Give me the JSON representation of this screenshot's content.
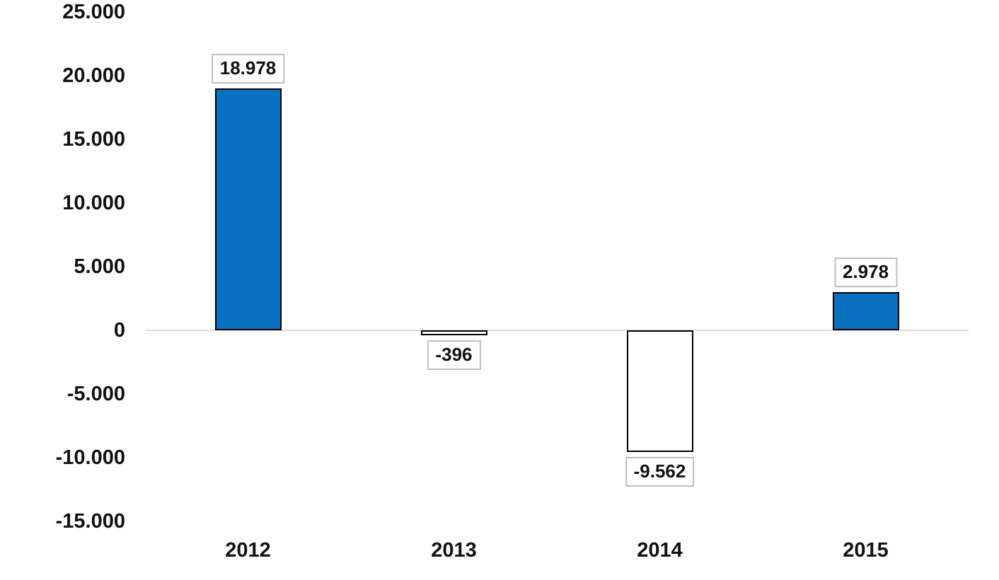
{
  "chart_data": {
    "type": "bar",
    "title": "",
    "xlabel": "",
    "ylabel": "",
    "categories": [
      "2012",
      "2013",
      "2014",
      "2015"
    ],
    "values": [
      18978,
      -396,
      -9562,
      2978
    ],
    "points": [
      {
        "category": "2012",
        "value": 18978,
        "label": "18.978",
        "fill": "#0a70c0"
      },
      {
        "category": "2013",
        "value": -396,
        "label": "-396",
        "fill": "#ffffff"
      },
      {
        "category": "2014",
        "value": -9562,
        "label": "-9.562",
        "fill": "#ffffff"
      },
      {
        "category": "2015",
        "value": 2978,
        "label": "2.978",
        "fill": "#0a70c0"
      }
    ],
    "ylim": [
      -15000,
      25000
    ],
    "ytick_interval": 5000,
    "yticks": [
      {
        "value": 25000,
        "label": "25.000"
      },
      {
        "value": 20000,
        "label": "20.000"
      },
      {
        "value": 15000,
        "label": "15.000"
      },
      {
        "value": 10000,
        "label": "10.000"
      },
      {
        "value": 5000,
        "label": "5.000"
      },
      {
        "value": 0,
        "label": "0"
      },
      {
        "value": -5000,
        "label": "-5.000"
      },
      {
        "value": -10000,
        "label": "-10.000"
      },
      {
        "value": -15000,
        "label": "-15.000"
      }
    ],
    "grid": false,
    "legend": "none",
    "number_format": "dot thousands separator",
    "colors": {
      "positive_bar_fill": "#0a70c0",
      "negative_bar_fill": "#ffffff",
      "bar_border": "#000000",
      "axis_line": "#dcdcdc",
      "data_label_box_border": "#bfbfbf",
      "text": "#111111",
      "background": "#ffffff"
    }
  }
}
